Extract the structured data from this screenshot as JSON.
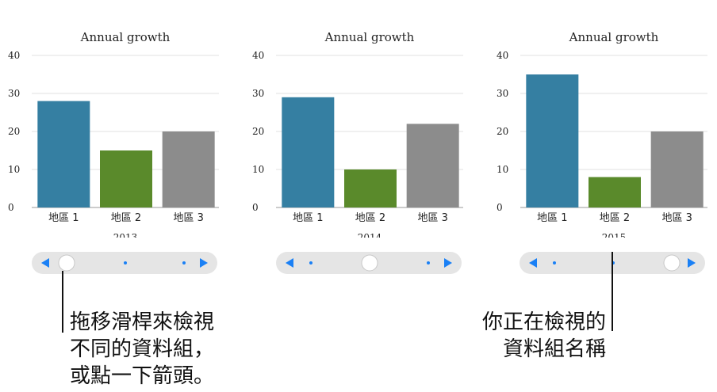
{
  "chart_data": [
    {
      "type": "bar",
      "title": "Annual growth",
      "dataset_label": "2013",
      "categories": [
        "地區 1",
        "地區 2",
        "地區 3"
      ],
      "values": [
        28,
        15,
        20
      ],
      "ylim": [
        0,
        40
      ],
      "yticks": [
        0,
        10,
        20,
        30,
        40
      ],
      "grid": true
    },
    {
      "type": "bar",
      "title": "Annual growth",
      "dataset_label": "2014",
      "categories": [
        "地區 1",
        "地區 2",
        "地區 3"
      ],
      "values": [
        29,
        10,
        22
      ],
      "ylim": [
        0,
        40
      ],
      "yticks": [
        0,
        10,
        20,
        30,
        40
      ],
      "grid": true
    },
    {
      "type": "bar",
      "title": "Annual growth",
      "dataset_label": "2015",
      "categories": [
        "地區 1",
        "地區 2",
        "地區 3"
      ],
      "values": [
        35,
        8,
        20
      ],
      "ylim": [
        0,
        40
      ],
      "yticks": [
        0,
        10,
        20,
        30,
        40
      ],
      "grid": true
    }
  ],
  "colors": {
    "bars": [
      "#357fa2",
      "#5a8a2b",
      "#8c8c8c"
    ],
    "grid": "#e2e2e2",
    "slider_track": "#e5e5e5",
    "slider_accent": "#1a80f5",
    "thumb_border": "#c8c8c8"
  },
  "sliders": [
    {
      "datasets": 3,
      "selected": 1
    },
    {
      "datasets": 3,
      "selected": 2
    },
    {
      "datasets": 3,
      "selected": 3
    }
  ],
  "icons": {
    "prev": "left-arrow-icon",
    "next": "right-arrow-icon"
  },
  "callouts": {
    "left_lines": [
      "拖移滑桿來檢視",
      "不同的資料組，",
      "或點一下箭頭。"
    ],
    "right_lines": [
      "你正在檢視的",
      "資料組名稱"
    ]
  }
}
